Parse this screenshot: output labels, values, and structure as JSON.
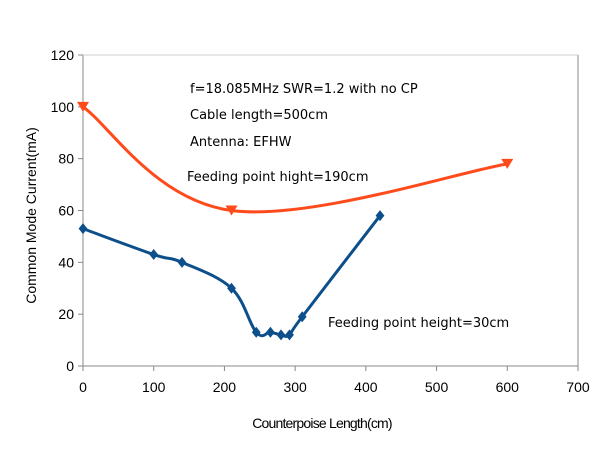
{
  "chart_data": {
    "type": "scatter",
    "xlabel": "Counterpoise Length(cm)",
    "ylabel": "Common Mode Current(mA)",
    "xlim": [
      0,
      700
    ],
    "ylim": [
      0,
      120
    ],
    "x_ticks": [
      "0",
      "100",
      "200",
      "300",
      "400",
      "500",
      "600",
      "700"
    ],
    "y_ticks": [
      "0",
      "20",
      "40",
      "60",
      "80",
      "100",
      "120"
    ],
    "grid": false,
    "legend": "none",
    "annotations": [
      "f=18.085MHz SWR=1.2 with no CP",
      "Cable length=500cm",
      "Antenna: EFHW",
      "Feeding point hight=190cm",
      "Feeding point height=30cm"
    ],
    "series": [
      {
        "color": "#ff4a1c",
        "marker": "triangle-down",
        "smooth": true,
        "points": [
          [
            0,
            100
          ],
          [
            210,
            60
          ],
          [
            600,
            78
          ]
        ]
      },
      {
        "color": "#0d4f8b",
        "marker": "diamond",
        "smooth": true,
        "points": [
          [
            0,
            53
          ],
          [
            100,
            43
          ],
          [
            140,
            40
          ],
          [
            210,
            30
          ],
          [
            245,
            13
          ],
          [
            265,
            13
          ],
          [
            280,
            12
          ],
          [
            292,
            12
          ],
          [
            310,
            19
          ],
          [
            420,
            58
          ]
        ]
      }
    ]
  }
}
